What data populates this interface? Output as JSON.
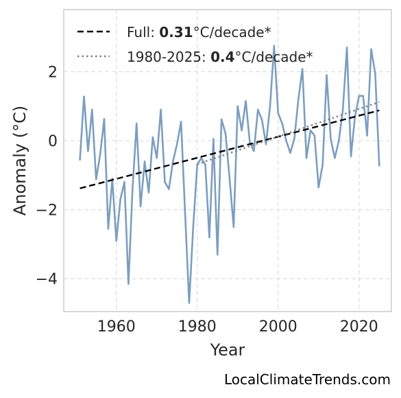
{
  "chart_data": {
    "type": "line",
    "xlabel": "Year",
    "ylabel": "Anomaly (°C)",
    "xlim": [
      1947,
      2028
    ],
    "ylim": [
      -4.95,
      3.8
    ],
    "xticks": [
      1960,
      1980,
      2000,
      2020
    ],
    "yticks": [
      -4,
      -2,
      0,
      2
    ],
    "ytick_labels": [
      "−4",
      "−2",
      "0",
      "2"
    ],
    "grid": true,
    "legend_position": "top-left",
    "colors": {
      "series": "#7b9ebf",
      "full_trend": "#000000",
      "recent_trend": "#808080",
      "grid": "#dddddd",
      "frame": "#cccccc"
    },
    "series": [
      {
        "x": [
          1951,
          1952,
          1953,
          1954,
          1955,
          1956,
          1957,
          1958,
          1959,
          1960,
          1961,
          1962,
          1963,
          1964,
          1965,
          1966,
          1967,
          1968,
          1969,
          1970,
          1971,
          1972,
          1973,
          1974,
          1975,
          1976,
          1977,
          1978,
          1979,
          1980,
          1981,
          1982,
          1983,
          1984,
          1985,
          1986,
          1987,
          1988,
          1989,
          1990,
          1991,
          1992,
          1993,
          1994,
          1995,
          1996,
          1997,
          1998,
          1999,
          2000,
          2001,
          2002,
          2003,
          2004,
          2005,
          2006,
          2007,
          2008,
          2009,
          2010,
          2011,
          2012,
          2013,
          2014,
          2015,
          2016,
          2017,
          2018,
          2019,
          2020,
          2021,
          2022,
          2023,
          2024,
          2025
        ],
        "values": [
          -0.55,
          1.28,
          -0.3,
          0.9,
          -1.12,
          -0.4,
          0.63,
          -2.55,
          -1.1,
          -2.9,
          -1.7,
          -1.2,
          -4.15,
          -1.4,
          0.5,
          -1.9,
          -0.6,
          -1.5,
          0.1,
          -0.5,
          0.9,
          -1.2,
          -1.4,
          -0.6,
          -0.1,
          0.55,
          -2.1,
          -4.7,
          -2.5,
          -0.7,
          -0.5,
          -0.7,
          -2.8,
          0.05,
          -3.3,
          0.62,
          0.2,
          -1.1,
          -2.5,
          1.0,
          0.3,
          1.15,
          -0.05,
          -0.3,
          0.9,
          0.6,
          -0.1,
          1.0,
          2.75,
          0.8,
          0.5,
          0.0,
          -0.35,
          0.05,
          1.2,
          2.08,
          -0.5,
          0.3,
          0.15,
          -1.35,
          -0.7,
          1.9,
          0.05,
          -0.5,
          0.0,
          0.9,
          2.7,
          -0.45,
          0.7,
          1.3,
          1.3,
          0.15,
          2.65,
          1.95,
          -0.72
        ]
      }
    ],
    "trend_full": {
      "x": [
        1951,
        2025
      ],
      "y": [
        -1.38,
        0.88
      ]
    },
    "trend_recent": {
      "x": [
        1980,
        2025
      ],
      "y": [
        -0.68,
        1.12
      ]
    },
    "legend": {
      "full": {
        "prefix": "Full: ",
        "value": "0.31",
        "suffix": "°C/decade*"
      },
      "recent": {
        "prefix": "1980-2025: ",
        "value": "0.4",
        "suffix": "°C/decade*"
      }
    }
  },
  "watermark": "LocalClimateTrends.com"
}
